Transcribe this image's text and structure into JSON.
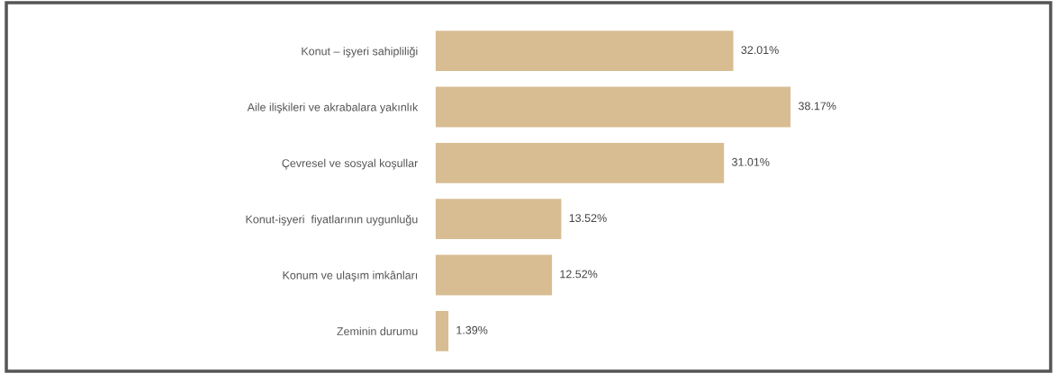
{
  "chart_data": {
    "type": "bar",
    "orientation": "horizontal",
    "categories": [
      "Konut – işyeri sahipliliği",
      "Aile ilişkileri ve akrabalara yakınlık",
      "Çevresel ve sosyal koşullar",
      "Konut-işyeri  fiyatlarının uygunluğu",
      "Konum ve ulaşım imkânları",
      "Zeminin durumu"
    ],
    "values": [
      32.01,
      38.17,
      31.01,
      13.52,
      12.52,
      1.39
    ],
    "value_labels": [
      "32.01%",
      "38.17%",
      "31.01%",
      "13.52%",
      "12.52%",
      "1.39%"
    ],
    "color": "#d8bd92",
    "grid": false,
    "legend": false
  }
}
